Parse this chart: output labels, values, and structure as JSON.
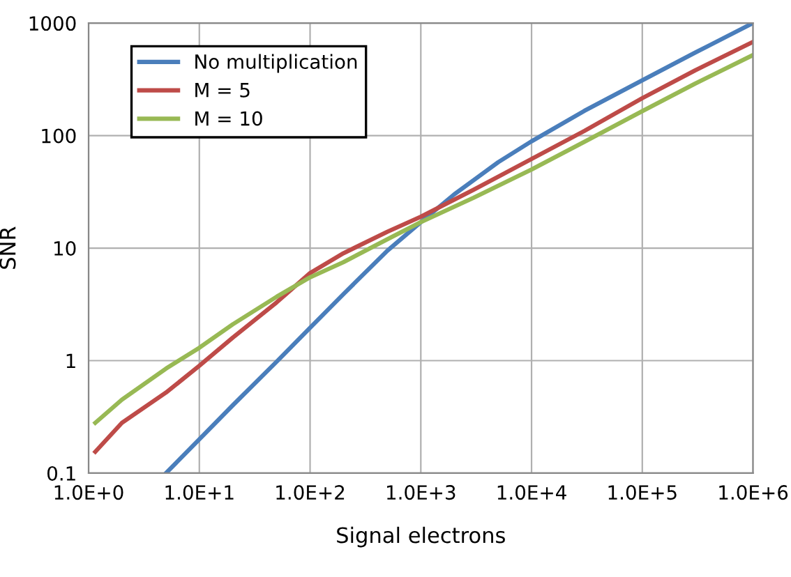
{
  "chart_data": {
    "type": "line",
    "xlabel": "Signal electrons",
    "ylabel": "SNR",
    "log": "xy",
    "grid": true,
    "legend": "top left",
    "marker": "none",
    "line_style": "solid",
    "xlim": [
      1,
      1000000
    ],
    "ylim": [
      0.1,
      1000
    ],
    "xticks": [
      {
        "value": 1,
        "label": "1.0E+0"
      },
      {
        "value": 10,
        "label": "1.0E+1"
      },
      {
        "value": 100,
        "label": "1.0E+2"
      },
      {
        "value": 1000,
        "label": "1.0E+3"
      },
      {
        "value": 10000,
        "label": "1.0E+4"
      },
      {
        "value": 100000,
        "label": "1.0E+5"
      },
      {
        "value": 1000000,
        "label": "1.0E+6"
      }
    ],
    "yticks": [
      0.1,
      1,
      10,
      100,
      1000
    ],
    "series": [
      {
        "name": "No multiplication",
        "color": "#4a7ebb",
        "x": [
          5,
          10,
          20,
          50,
          100,
          200,
          500,
          1000,
          2000,
          5000,
          10000,
          30000,
          100000,
          300000,
          1000000
        ],
        "values": [
          0.1,
          0.2,
          0.4,
          0.98,
          1.96,
          3.9,
          9.5,
          17,
          30,
          58,
          89,
          166,
          310,
          546,
          1000
        ]
      },
      {
        "name": "M = 5",
        "color": "#be4b48",
        "x": [
          1.15,
          2,
          5,
          10,
          20,
          50,
          100,
          200,
          500,
          1000,
          3000,
          10000,
          30000,
          100000,
          300000,
          1000000
        ],
        "values": [
          0.155,
          0.28,
          0.52,
          0.9,
          1.6,
          3.3,
          6,
          9,
          14,
          19,
          33,
          62,
          110,
          215,
          380,
          680
        ]
      },
      {
        "name": "M = 10",
        "color": "#98b954",
        "x": [
          1.15,
          2,
          5,
          10,
          20,
          50,
          100,
          200,
          500,
          1000,
          3000,
          10000,
          30000,
          100000,
          300000,
          1000000
        ],
        "values": [
          0.28,
          0.45,
          0.85,
          1.3,
          2.1,
          3.7,
          5.5,
          7.5,
          12,
          17,
          28,
          50,
          88,
          165,
          290,
          520
        ]
      }
    ]
  }
}
